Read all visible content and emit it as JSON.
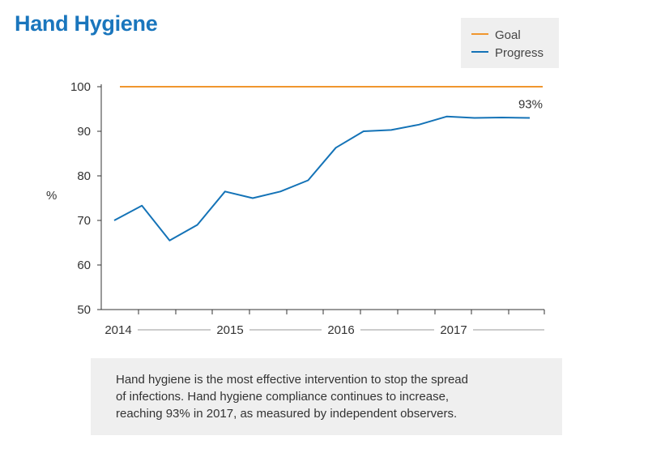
{
  "title": "Hand Hygiene",
  "caption": {
    "lines": [
      "Hand hygiene is the most effective intervention to stop the spread",
      "of infections. Hand hygiene compliance continues to increase,",
      "reaching 93% in 2017, as measured by independent observers."
    ]
  },
  "colors": {
    "title": "#1a76bd",
    "goal": "#f0962e",
    "progress": "#1473b7",
    "axis": "#333333"
  },
  "chart_data": {
    "type": "line",
    "ylabel": "%",
    "xlabel": "",
    "ylim": [
      50,
      100
    ],
    "yticks": [
      50,
      60,
      70,
      80,
      90,
      100
    ],
    "year_labels": [
      "2014",
      "2015",
      "2016",
      "2017"
    ],
    "legend": {
      "placement": "top-right",
      "entries": [
        "Goal",
        "Progress"
      ]
    },
    "series": [
      {
        "name": "Goal",
        "x": [
          0,
          15
        ],
        "values": [
          100,
          100
        ]
      },
      {
        "name": "Progress",
        "x": [
          0,
          1,
          2,
          3,
          4,
          5,
          6,
          7,
          8,
          9,
          10,
          11,
          12,
          13,
          14,
          15
        ],
        "values": [
          70,
          73.3,
          65.5,
          69,
          76.5,
          75,
          76.5,
          79,
          86.3,
          90,
          90.3,
          91.5,
          93.3,
          93,
          93.1,
          93
        ]
      }
    ],
    "annotations": [
      {
        "text": "93%",
        "series": "Progress",
        "index": 15
      }
    ]
  }
}
